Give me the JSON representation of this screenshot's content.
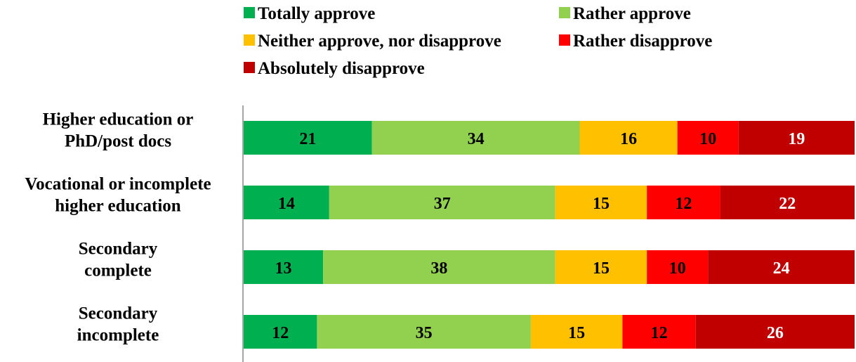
{
  "chart_data": {
    "type": "bar",
    "orientation": "horizontal",
    "stacked": true,
    "percent_stacked": true,
    "categories": [
      [
        "Higher education or",
        "PhD/post docs"
      ],
      [
        "Vocational or incomplete",
        "higher education"
      ],
      [
        "Secondary",
        "complete"
      ],
      [
        "Secondary",
        "incomplete"
      ]
    ],
    "series": [
      {
        "name": "Totally approve",
        "color": "#00b050",
        "label_color": "#000000",
        "values": [
          21,
          14,
          13,
          12
        ]
      },
      {
        "name": "Rather approve",
        "color": "#92d050",
        "label_color": "#000000",
        "values": [
          34,
          37,
          38,
          35
        ]
      },
      {
        "name": "Neither approve, nor disapprove",
        "color": "#ffc000",
        "label_color": "#000000",
        "values": [
          16,
          15,
          15,
          15
        ]
      },
      {
        "name": "Rather disapprove",
        "color": "#ff0000",
        "label_color": "#000000",
        "values": [
          10,
          12,
          10,
          12
        ]
      },
      {
        "name": "Absolutely disapprove",
        "color": "#c00000",
        "label_color": "#ffffff",
        "values": [
          19,
          22,
          24,
          26
        ]
      }
    ],
    "legend_position": "top",
    "grid": false,
    "data_labels": true
  }
}
